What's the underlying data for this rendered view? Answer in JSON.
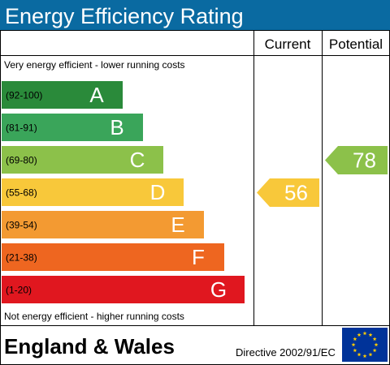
{
  "header": {
    "title": "Energy Efficiency Rating"
  },
  "columns": {
    "current": "Current",
    "potential": "Potential"
  },
  "scale": {
    "top_label": "Very energy efficient - lower running costs",
    "bottom_label": "Not energy efficient - higher running costs"
  },
  "footer": {
    "region": "England & Wales",
    "directive": "Directive 2002/91/EC"
  },
  "colors": {
    "header_bg": "#0a6aa1",
    "header_text": "#ffffff",
    "border": "#000000",
    "eu_flag": "#003399",
    "eu_stars": "#ffcc00"
  },
  "chart_data": {
    "type": "bar",
    "categories": [
      "A",
      "B",
      "C",
      "D",
      "E",
      "F",
      "G"
    ],
    "bands": [
      {
        "letter": "A",
        "range": "(92-100)",
        "color": "#2a8a3a"
      },
      {
        "letter": "B",
        "range": "(81-91)",
        "color": "#3aa55a"
      },
      {
        "letter": "C",
        "range": "(69-80)",
        "color": "#8cc14a"
      },
      {
        "letter": "D",
        "range": "(55-68)",
        "color": "#f8c83a"
      },
      {
        "letter": "E",
        "range": "(39-54)",
        "color": "#f39a32"
      },
      {
        "letter": "F",
        "range": "(21-38)",
        "color": "#ee6620"
      },
      {
        "letter": "G",
        "range": "(1-20)",
        "color": "#e0171f"
      }
    ],
    "current": {
      "value": 56,
      "band": "D",
      "color": "#f8c83a"
    },
    "potential": {
      "value": 78,
      "band": "C",
      "color": "#8cc14a"
    }
  }
}
